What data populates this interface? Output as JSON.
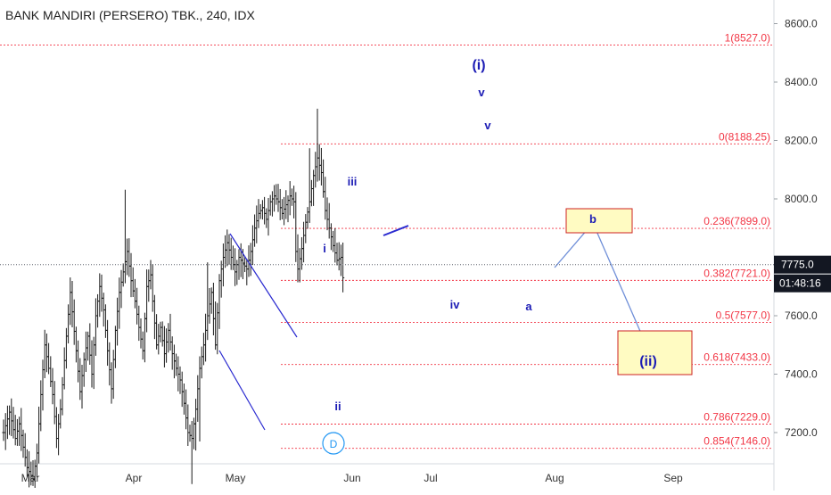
{
  "chart_data": {
    "type": "bar",
    "subtype": "ohlc",
    "title": "BANK MANDIRI (PERSERO) TBK., 240, IDX",
    "xlabel": "",
    "ylabel": "",
    "ylim": [
      7100,
      8660
    ],
    "grid": false,
    "x_ticks": [
      "Mar",
      "Apr",
      "May",
      "Jun",
      "Jul",
      "Aug",
      "Sep"
    ],
    "y_ticks": [
      "8600.0",
      "8400.0",
      "8200.0",
      "8000.0",
      "7600.0",
      "7400.0",
      "7200.0"
    ],
    "last_price": "7775.0",
    "countdown": "01:48:16",
    "price_path": [
      [
        0,
        7200
      ],
      [
        3,
        7270
      ],
      [
        6,
        7180
      ],
      [
        8,
        7230
      ],
      [
        10,
        7150
      ],
      [
        12,
        7080
      ],
      [
        15,
        7040
      ],
      [
        17,
        7130
      ],
      [
        19,
        7330
      ],
      [
        21,
        7500
      ],
      [
        23,
        7420
      ],
      [
        25,
        7330
      ],
      [
        27,
        7180
      ],
      [
        29,
        7280
      ],
      [
        32,
        7530
      ],
      [
        34,
        7680
      ],
      [
        37,
        7480
      ],
      [
        39,
        7340
      ],
      [
        41,
        7450
      ],
      [
        43,
        7530
      ],
      [
        45,
        7400
      ],
      [
        47,
        7600
      ],
      [
        49,
        7700
      ],
      [
        51,
        7620
      ],
      [
        53,
        7480
      ],
      [
        55,
        7350
      ],
      [
        57,
        7550
      ],
      [
        59,
        7680
      ],
      [
        61,
        7750
      ],
      [
        63,
        7820
      ],
      [
        65,
        7720
      ],
      [
        67,
        7650
      ],
      [
        69,
        7560
      ],
      [
        71,
        7480
      ],
      [
        73,
        7700
      ],
      [
        75,
        7740
      ],
      [
        76,
        7650
      ],
      [
        78,
        7500
      ],
      [
        80,
        7560
      ],
      [
        82,
        7470
      ],
      [
        84,
        7550
      ],
      [
        86,
        7470
      ],
      [
        88,
        7420
      ],
      [
        90,
        7380
      ],
      [
        92,
        7300
      ],
      [
        94,
        7200
      ],
      [
        96,
        7180
      ],
      [
        98,
        7280
      ],
      [
        100,
        7420
      ],
      [
        102,
        7500
      ],
      [
        104,
        7600
      ],
      [
        106,
        7680
      ],
      [
        108,
        7500
      ],
      [
        110,
        7720
      ],
      [
        112,
        7800
      ],
      [
        114,
        7850
      ],
      [
        116,
        7800
      ],
      [
        118,
        7750
      ],
      [
        120,
        7800
      ],
      [
        122,
        7780
      ],
      [
        124,
        7760
      ],
      [
        126,
        7820
      ],
      [
        128,
        7900
      ],
      [
        130,
        7950
      ],
      [
        132,
        7970
      ],
      [
        134,
        7930
      ],
      [
        136,
        7990
      ],
      [
        138,
        8010
      ],
      [
        140,
        7990
      ],
      [
        142,
        7950
      ],
      [
        144,
        7980
      ],
      [
        146,
        8010
      ],
      [
        148,
        7990
      ],
      [
        149,
        7820
      ],
      [
        150,
        7760
      ],
      [
        152,
        7830
      ],
      [
        154,
        7920
      ],
      [
        156,
        7990
      ],
      [
        158,
        8080
      ],
      [
        160,
        8140
      ],
      [
        162,
        8090
      ],
      [
        164,
        7960
      ],
      [
        166,
        7900
      ],
      [
        168,
        7840
      ],
      [
        170,
        7790
      ],
      [
        172,
        7800
      ],
      [
        173,
        7730
      ]
    ],
    "fib_levels": [
      {
        "ratio": "1",
        "value": 8527.0,
        "label": "1(8527.0)"
      },
      {
        "ratio": "0",
        "value": 8188.25,
        "label": "0(8188.25)"
      },
      {
        "ratio": "0.236",
        "value": 7899.0,
        "label": "0.236(7899.0)"
      },
      {
        "ratio": "0.382",
        "value": 7721.0,
        "label": "0.382(7721.0)"
      },
      {
        "ratio": "0.5",
        "value": 7577.0,
        "label": "0.5(7577.0)"
      },
      {
        "ratio": "0.618",
        "value": 7433.0,
        "label": "0.618(7433.0)"
      },
      {
        "ratio": "0.786",
        "value": 7229.0,
        "label": "0.786(7229.0)"
      },
      {
        "ratio": "0.854",
        "value": 7146.0,
        "label": "0.854(7146.0)"
      }
    ],
    "wave_labels": [
      {
        "text": "(i)",
        "near": 8450
      },
      {
        "text": "v",
        "near": 8350
      },
      {
        "text": "v",
        "near": 8220
      },
      {
        "text": "iii",
        "near": 8040
      },
      {
        "text": "i",
        "near": 7810
      },
      {
        "text": "iv",
        "near": 7620
      },
      {
        "text": "a",
        "near": 7610
      },
      {
        "text": "ii",
        "near": 7290
      },
      {
        "text": "b",
        "near": 7890
      },
      {
        "text": "(ii)",
        "near": 7435
      }
    ],
    "event_marker": "D"
  },
  "colors": {
    "bar": "#1a1a1a",
    "fib": "#f23645",
    "wave_label": "#1c1cb5",
    "trend_line": "#2a2ad0",
    "forecast_line": "#6f8fd8",
    "zone_fill": "#fffbc2",
    "zone_border": "#cc2222",
    "axis_text": "#333333",
    "badge_bg": "#131722",
    "badge_text": "#ffffff",
    "event_marker": "#2196f3"
  }
}
